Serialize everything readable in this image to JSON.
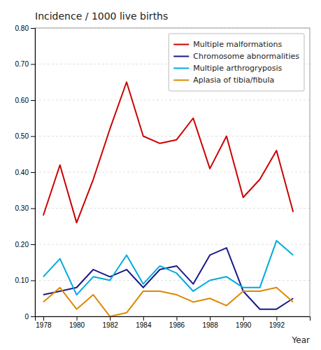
{
  "chart_data": {
    "type": "line",
    "title": "Incidence / 1000 live births",
    "xlabel": "Year",
    "x": [
      1978,
      1979,
      1980,
      1981,
      1982,
      1983,
      1984,
      1985,
      1986,
      1987,
      1988,
      1989,
      1990,
      1991,
      1992,
      1993
    ],
    "series": [
      {
        "name": "Multiple malformations",
        "color": "#cc0000",
        "values": [
          0.28,
          0.42,
          0.26,
          0.38,
          0.52,
          0.65,
          0.5,
          0.48,
          0.49,
          0.55,
          0.41,
          0.5,
          0.33,
          0.38,
          0.46,
          0.29
        ]
      },
      {
        "name": "Chromosome abnormalities",
        "color": "#1a1a8a",
        "values": [
          0.06,
          0.07,
          0.08,
          0.13,
          0.11,
          0.13,
          0.08,
          0.13,
          0.14,
          0.09,
          0.17,
          0.19,
          0.07,
          0.02,
          0.02,
          0.05
        ]
      },
      {
        "name": "Multiple arthrogryposis",
        "color": "#00aadd",
        "values": [
          0.11,
          0.16,
          0.06,
          0.11,
          0.1,
          0.17,
          0.09,
          0.14,
          0.12,
          0.07,
          0.1,
          0.11,
          0.08,
          0.08,
          0.21,
          0.17
        ]
      },
      {
        "name": "Aplasia of tibia/fibula",
        "color": "#dd8800",
        "values": [
          0.04,
          0.08,
          0.02,
          0.06,
          0.0,
          0.01,
          0.07,
          0.07,
          0.06,
          0.04,
          0.05,
          0.03,
          0.07,
          0.07,
          0.08,
          0.04
        ]
      }
    ],
    "xlim": [
      1977.5,
      1994
    ],
    "xticks": [
      1978,
      1980,
      1982,
      1984,
      1986,
      1988,
      1990,
      1992
    ],
    "ylim": [
      0,
      0.8
    ],
    "yticks": [
      0,
      {
        "value": 0.1,
        "label": "0.10"
      },
      {
        "value": 0.2,
        "label": "0.20"
      },
      {
        "value": 0.3,
        "label": "0.30"
      },
      {
        "value": 0.4,
        "label": "0.40"
      },
      {
        "value": 0.5,
        "label": "0.50"
      },
      {
        "value": 0.6,
        "label": "0.60"
      },
      {
        "value": 0.7,
        "label": "0.70"
      },
      {
        "value": 0.8,
        "label": "0.80"
      }
    ],
    "grid": "y",
    "legend": "upper right"
  }
}
